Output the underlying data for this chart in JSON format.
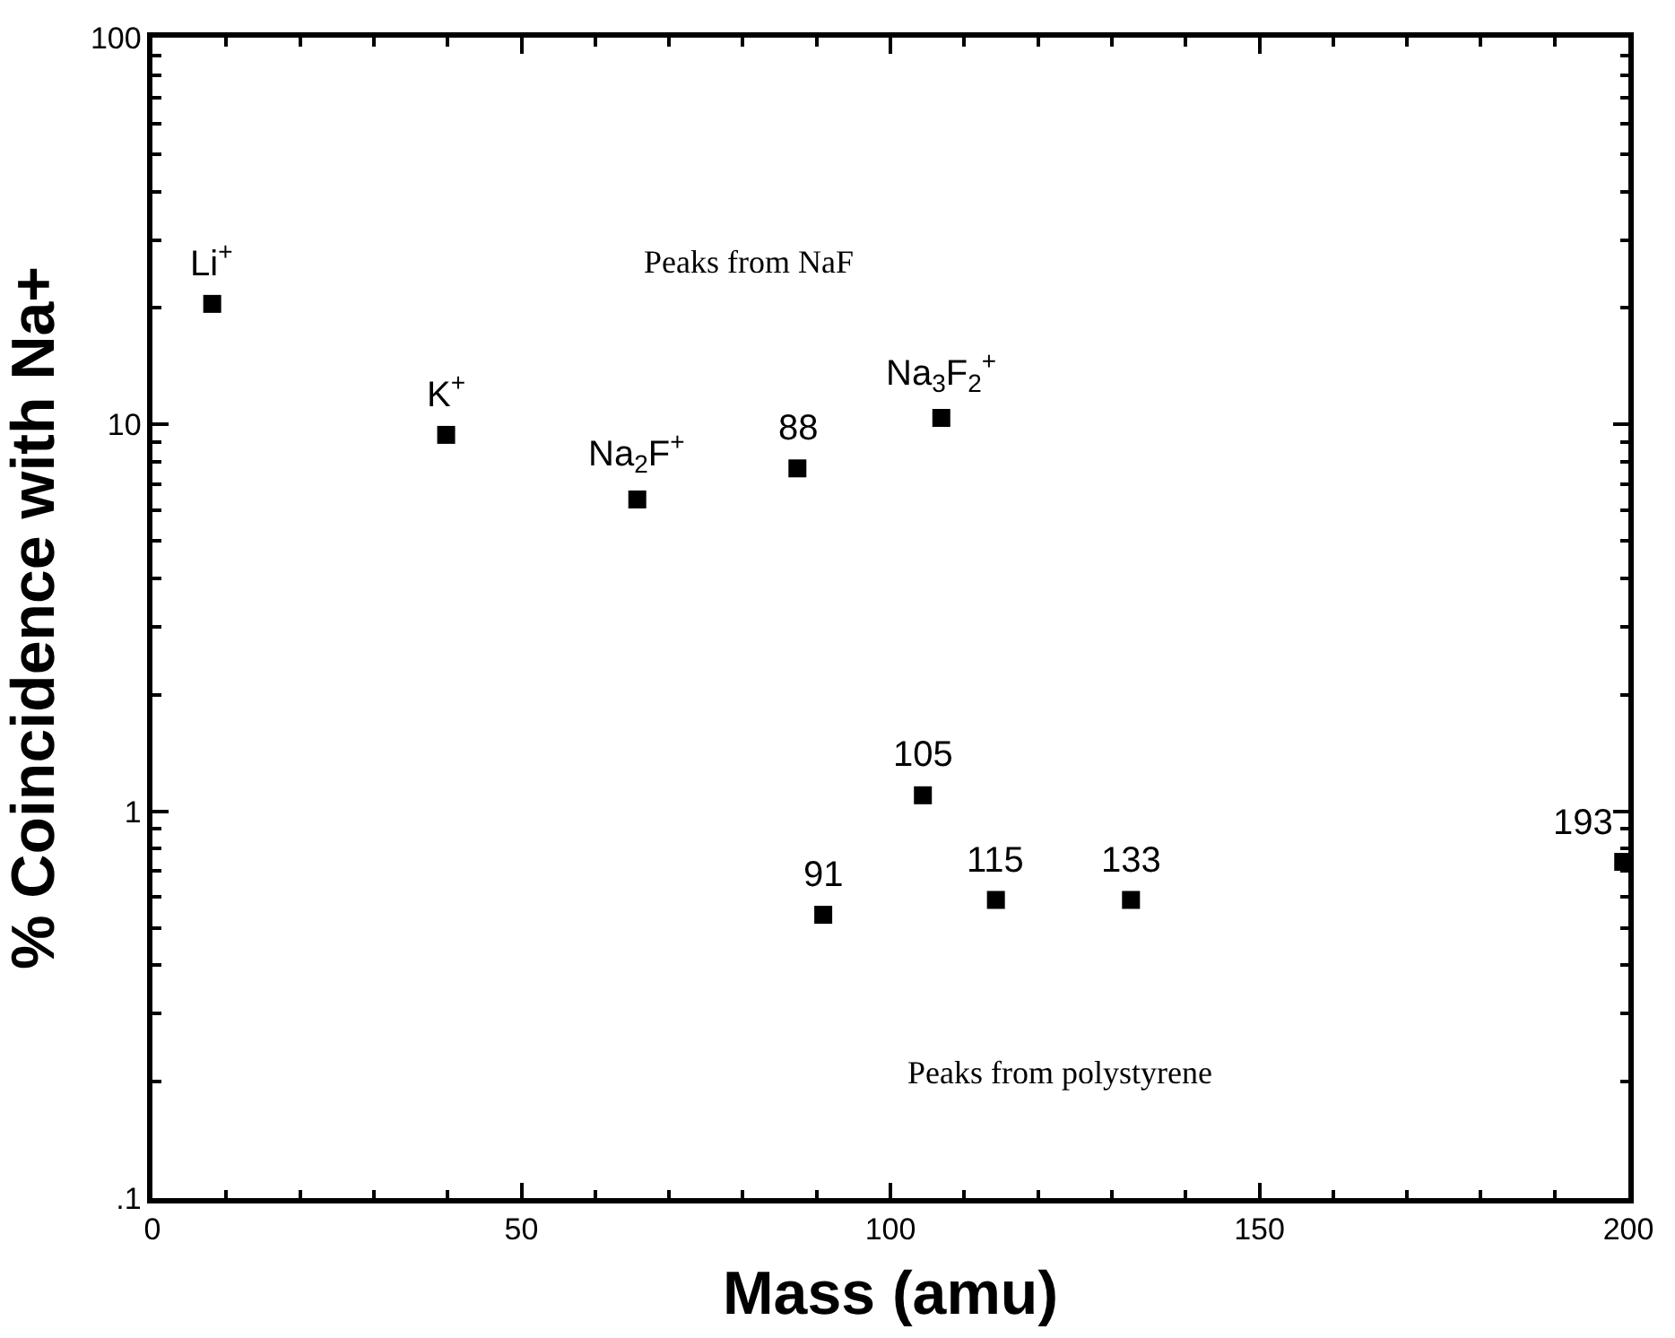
{
  "chart_data": {
    "type": "scatter",
    "xlabel": "Mass (amu)",
    "ylabel": "% Coincidence with Na+",
    "x": [
      8.1,
      39.8,
      65.7,
      87.4,
      106.9,
      104.4,
      90.9,
      114.3,
      132.6,
      199.3
    ],
    "series": [
      {
        "color": "#000000",
        "values": [
          20.5,
          9.4,
          6.4,
          7.7,
          10.4,
          1.1,
          0.54,
          0.59,
          0.59,
          0.74
        ]
      }
    ],
    "log": "y",
    "marker": "square",
    "xlim": [
      0,
      200
    ],
    "xticks": [
      0,
      50,
      100,
      150,
      200
    ],
    "ylim": [
      0.1,
      100
    ],
    "yticks": [
      {
        "value": 0.1,
        "label": ".1"
      },
      1,
      10,
      100
    ],
    "annotations": [
      {
        "text": "Li$^{+}$",
        "x": 8.1,
        "y": 20.5
      },
      {
        "text": "K$^{+}$",
        "x": 39.8,
        "y": 9.4
      },
      {
        "text": "Na$_{2}$F$^{+}$",
        "x": 65.7,
        "y": 6.4
      },
      {
        "text": "88",
        "x": 87.4,
        "y": 7.7
      },
      {
        "text": "Na$_{3}$F$_{2}$$^{+}$",
        "x": 106.9,
        "y": 10.4
      },
      {
        "text": "105",
        "x": 104.4,
        "y": 1.1
      },
      {
        "text": "91",
        "x": 90.9,
        "y": 0.54
      },
      {
        "text": "115",
        "x": 114.3,
        "y": 0.59
      },
      {
        "text": "133",
        "x": 132.6,
        "y": 0.59
      },
      {
        "text": "193",
        "x": 199.3,
        "y": 0.74
      },
      "Peaks from NaF",
      "Peaks from polystyrene"
    ]
  }
}
